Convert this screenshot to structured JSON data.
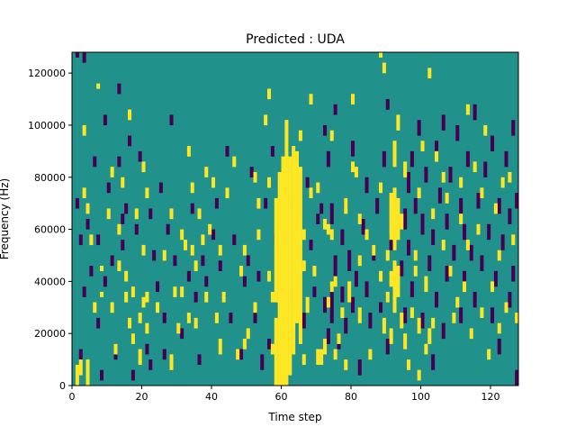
{
  "chart_data": {
    "type": "heatmap",
    "title": "Predicted : UDA",
    "xlabel": "Time step",
    "ylabel": "Frequency (Hz)",
    "xlim": [
      0,
      128
    ],
    "ylim": [
      0,
      128000
    ],
    "xticks": [
      0,
      20,
      40,
      60,
      80,
      100,
      120
    ],
    "yticks": [
      0,
      20000,
      40000,
      60000,
      80000,
      100000,
      120000
    ],
    "n_time_steps": 128,
    "n_freq_bins": 64,
    "freq_bin_hz": 2000,
    "levels": {
      "low": -1,
      "mid": 0,
      "high": 1
    },
    "colors": {
      "low": "#440154",
      "mid": "#21918c",
      "high": "#fde725"
    },
    "background_level": 0,
    "high_runs": [
      [
        1,
        0,
        3
      ],
      [
        2,
        2,
        4
      ],
      [
        3,
        48,
        49
      ],
      [
        3,
        36,
        37
      ],
      [
        4,
        0,
        4
      ],
      [
        4,
        33,
        34
      ],
      [
        5,
        27,
        28
      ],
      [
        6,
        14,
        15
      ],
      [
        7,
        57,
        57
      ],
      [
        8,
        22,
        22
      ],
      [
        8,
        17,
        17
      ],
      [
        10,
        32,
        33
      ],
      [
        11,
        14,
        15
      ],
      [
        11,
        40,
        41
      ],
      [
        12,
        6,
        7
      ],
      [
        13,
        22,
        23
      ],
      [
        13,
        29,
        30
      ],
      [
        14,
        38,
        39
      ],
      [
        15,
        20,
        21
      ],
      [
        15,
        16,
        17
      ],
      [
        16,
        11,
        12
      ],
      [
        16,
        51,
        52
      ],
      [
        17,
        8,
        9
      ],
      [
        17,
        17,
        18
      ],
      [
        18,
        32,
        33
      ],
      [
        19,
        12,
        13
      ],
      [
        19,
        4,
        6
      ],
      [
        20,
        41,
        42
      ],
      [
        20,
        15,
        16
      ],
      [
        20,
        25,
        26
      ],
      [
        21,
        16,
        17
      ],
      [
        21,
        10,
        11
      ],
      [
        21,
        36,
        37
      ],
      [
        24,
        14,
        15
      ],
      [
        26,
        24,
        25
      ],
      [
        28,
        3,
        5
      ],
      [
        28,
        32,
        33
      ],
      [
        29,
        17,
        18
      ],
      [
        30,
        10,
        11
      ],
      [
        31,
        28,
        29
      ],
      [
        31,
        17,
        18
      ],
      [
        32,
        26,
        27
      ],
      [
        33,
        12,
        13
      ],
      [
        33,
        44,
        45
      ],
      [
        34,
        25,
        26
      ],
      [
        34,
        37,
        38
      ],
      [
        35,
        22,
        23
      ],
      [
        35,
        11,
        12
      ],
      [
        36,
        32,
        33
      ],
      [
        37,
        27,
        28
      ],
      [
        38,
        16,
        17
      ],
      [
        38,
        40,
        41
      ],
      [
        39,
        29,
        30
      ],
      [
        40,
        38,
        39
      ],
      [
        41,
        12,
        13
      ],
      [
        42,
        6,
        8
      ],
      [
        42,
        25,
        26
      ],
      [
        43,
        16,
        17
      ],
      [
        44,
        36,
        37
      ],
      [
        46,
        42,
        43
      ],
      [
        47,
        5,
        6
      ],
      [
        48,
        21,
        22
      ],
      [
        49,
        7,
        8
      ],
      [
        49,
        25,
        26
      ],
      [
        50,
        9,
        10
      ],
      [
        52,
        14,
        15
      ],
      [
        52,
        39,
        40
      ],
      [
        53,
        28,
        29
      ],
      [
        53,
        34,
        35
      ],
      [
        55,
        50,
        51
      ],
      [
        56,
        20,
        21
      ],
      [
        56,
        55,
        56
      ],
      [
        56,
        38,
        39
      ],
      [
        57,
        6,
        7
      ],
      [
        57,
        16,
        17
      ],
      [
        58,
        0,
        12
      ],
      [
        58,
        16,
        35
      ],
      [
        59,
        0,
        40
      ],
      [
        60,
        0,
        43
      ],
      [
        61,
        0,
        50
      ],
      [
        62,
        2,
        43
      ],
      [
        63,
        6,
        45
      ],
      [
        64,
        12,
        44
      ],
      [
        65,
        8,
        41
      ],
      [
        65,
        47,
        48
      ],
      [
        66,
        28,
        29
      ],
      [
        66,
        22,
        23
      ],
      [
        66,
        4,
        5
      ],
      [
        67,
        14,
        16
      ],
      [
        68,
        36,
        37
      ],
      [
        68,
        54,
        55
      ],
      [
        69,
        21,
        22
      ],
      [
        70,
        4,
        6
      ],
      [
        70,
        37,
        38
      ],
      [
        71,
        4,
        6
      ],
      [
        72,
        6,
        8
      ],
      [
        72,
        30,
        31
      ],
      [
        73,
        15,
        16
      ],
      [
        73,
        29,
        30
      ],
      [
        74,
        28,
        29
      ],
      [
        74,
        18,
        19
      ],
      [
        74,
        47,
        48
      ],
      [
        75,
        5,
        6
      ],
      [
        75,
        19,
        20
      ],
      [
        76,
        8,
        9
      ],
      [
        77,
        13,
        14
      ],
      [
        78,
        3,
        4
      ],
      [
        78,
        33,
        35
      ],
      [
        79,
        18,
        19
      ],
      [
        79,
        16,
        17
      ],
      [
        80,
        41,
        42
      ],
      [
        80,
        54,
        55
      ],
      [
        81,
        40,
        41
      ],
      [
        82,
        31,
        32
      ],
      [
        82,
        12,
        14
      ],
      [
        82,
        23,
        24
      ],
      [
        84,
        28,
        29
      ],
      [
        85,
        5,
        6
      ],
      [
        86,
        25,
        26
      ],
      [
        88,
        20,
        21
      ],
      [
        88,
        37,
        38
      ],
      [
        88,
        63,
        63
      ],
      [
        89,
        10,
        12
      ],
      [
        89,
        60,
        61
      ],
      [
        90,
        24,
        25
      ],
      [
        90,
        16,
        17
      ],
      [
        91,
        19,
        21
      ],
      [
        91,
        28,
        36
      ],
      [
        91,
        8,
        10
      ],
      [
        92,
        14,
        23
      ],
      [
        92,
        26,
        37
      ],
      [
        92,
        42,
        46
      ],
      [
        93,
        17,
        22
      ],
      [
        93,
        28,
        35
      ],
      [
        93,
        49,
        51
      ],
      [
        94,
        11,
        13
      ],
      [
        94,
        30,
        32
      ],
      [
        95,
        7,
        9
      ],
      [
        95,
        40,
        42
      ],
      [
        96,
        3,
        4
      ],
      [
        97,
        13,
        14
      ],
      [
        98,
        21,
        22
      ],
      [
        98,
        24,
        25
      ],
      [
        99,
        10,
        12
      ],
      [
        99,
        36,
        37
      ],
      [
        99,
        1,
        2
      ],
      [
        100,
        45,
        46
      ],
      [
        101,
        18,
        20
      ],
      [
        101,
        6,
        7
      ],
      [
        102,
        8,
        10
      ],
      [
        102,
        59,
        60
      ],
      [
        103,
        32,
        33
      ],
      [
        103,
        11,
        12
      ],
      [
        104,
        43,
        44
      ],
      [
        106,
        26,
        27
      ],
      [
        106,
        39,
        40
      ],
      [
        107,
        35,
        36
      ],
      [
        108,
        21,
        22
      ],
      [
        109,
        12,
        13
      ],
      [
        110,
        15,
        16
      ],
      [
        111,
        31,
        32
      ],
      [
        111,
        38,
        39
      ],
      [
        112,
        18,
        19
      ],
      [
        113,
        26,
        27
      ],
      [
        113,
        52,
        53
      ],
      [
        114,
        9,
        10
      ],
      [
        115,
        41,
        42
      ],
      [
        116,
        29,
        30
      ],
      [
        117,
        36,
        37
      ],
      [
        117,
        13,
        14
      ],
      [
        118,
        48,
        49
      ],
      [
        119,
        5,
        6
      ],
      [
        120,
        18,
        19
      ],
      [
        121,
        33,
        34
      ],
      [
        122,
        24,
        25
      ],
      [
        122,
        10,
        11
      ],
      [
        123,
        38,
        39
      ],
      [
        124,
        14,
        15
      ],
      [
        125,
        39,
        40
      ],
      [
        126,
        27,
        28
      ],
      [
        127,
        12,
        13
      ]
    ],
    "low_runs": [
      [
        1,
        34,
        35
      ],
      [
        1,
        63,
        63
      ],
      [
        2,
        5,
        6
      ],
      [
        2,
        27,
        28
      ],
      [
        3,
        17,
        18
      ],
      [
        3,
        62,
        63
      ],
      [
        4,
        30,
        31
      ],
      [
        5,
        21,
        22
      ],
      [
        6,
        42,
        43
      ],
      [
        7,
        27,
        28
      ],
      [
        7,
        11,
        12
      ],
      [
        8,
        1,
        2
      ],
      [
        9,
        19,
        20
      ],
      [
        9,
        50,
        51
      ],
      [
        10,
        37,
        38
      ],
      [
        11,
        23,
        24
      ],
      [
        12,
        5,
        7
      ],
      [
        13,
        42,
        43
      ],
      [
        13,
        56,
        57
      ],
      [
        14,
        26,
        27
      ],
      [
        14,
        31,
        32
      ],
      [
        15,
        33,
        34
      ],
      [
        16,
        46,
        47
      ],
      [
        17,
        1,
        2
      ],
      [
        18,
        29,
        30
      ],
      [
        19,
        43,
        44
      ],
      [
        21,
        6,
        7
      ],
      [
        22,
        3,
        4
      ],
      [
        22,
        32,
        33
      ],
      [
        23,
        24,
        25
      ],
      [
        24,
        18,
        19
      ],
      [
        25,
        37,
        38
      ],
      [
        26,
        5,
        6
      ],
      [
        26,
        12,
        13
      ],
      [
        27,
        29,
        30
      ],
      [
        28,
        50,
        51
      ],
      [
        29,
        23,
        24
      ],
      [
        31,
        9,
        10
      ],
      [
        33,
        20,
        21
      ],
      [
        34,
        33,
        34
      ],
      [
        35,
        16,
        17
      ],
      [
        36,
        4,
        5
      ],
      [
        37,
        23,
        24
      ],
      [
        38,
        19,
        20
      ],
      [
        40,
        28,
        29
      ],
      [
        41,
        34,
        35
      ],
      [
        42,
        22,
        23
      ],
      [
        44,
        44,
        45
      ],
      [
        45,
        12,
        13
      ],
      [
        46,
        27,
        28
      ],
      [
        48,
        5,
        6
      ],
      [
        49,
        19,
        20
      ],
      [
        50,
        23,
        24
      ],
      [
        51,
        40,
        41
      ],
      [
        52,
        12,
        13
      ],
      [
        53,
        20,
        21
      ],
      [
        54,
        3,
        5
      ],
      [
        55,
        34,
        35
      ],
      [
        56,
        7,
        8
      ],
      [
        57,
        44,
        45
      ],
      [
        58,
        27,
        28
      ],
      [
        63,
        15,
        18
      ],
      [
        63,
        34,
        35
      ],
      [
        64,
        29,
        30
      ],
      [
        65,
        22,
        23
      ],
      [
        66,
        11,
        13
      ],
      [
        67,
        38,
        39
      ],
      [
        68,
        26,
        27
      ],
      [
        69,
        17,
        18
      ],
      [
        70,
        31,
        32
      ],
      [
        71,
        33,
        34
      ],
      [
        72,
        14,
        16
      ],
      [
        72,
        48,
        49
      ],
      [
        73,
        8,
        10
      ],
      [
        73,
        42,
        44
      ],
      [
        74,
        12,
        18
      ],
      [
        74,
        31,
        34
      ],
      [
        75,
        20,
        24
      ],
      [
        75,
        52,
        53
      ],
      [
        76,
        7,
        9
      ],
      [
        77,
        16,
        18
      ],
      [
        77,
        27,
        29
      ],
      [
        78,
        10,
        12
      ],
      [
        78,
        34,
        35
      ],
      [
        79,
        22,
        25
      ],
      [
        80,
        14,
        16
      ],
      [
        80,
        44,
        46
      ],
      [
        81,
        19,
        21
      ],
      [
        82,
        2,
        4
      ],
      [
        83,
        29,
        31
      ],
      [
        84,
        17,
        19
      ],
      [
        84,
        37,
        39
      ],
      [
        85,
        11,
        13
      ],
      [
        86,
        24,
        26
      ],
      [
        87,
        33,
        35
      ],
      [
        88,
        14,
        15
      ],
      [
        89,
        42,
        44
      ],
      [
        90,
        6,
        8
      ],
      [
        90,
        53,
        54
      ],
      [
        91,
        26,
        28
      ],
      [
        94,
        21,
        23
      ],
      [
        95,
        12,
        14
      ],
      [
        95,
        30,
        33
      ],
      [
        96,
        25,
        27
      ],
      [
        96,
        37,
        40
      ],
      [
        97,
        17,
        19
      ],
      [
        97,
        42,
        44
      ],
      [
        98,
        33,
        35
      ],
      [
        99,
        48,
        50
      ],
      [
        100,
        11,
        13
      ],
      [
        100,
        29,
        32
      ],
      [
        101,
        39,
        41
      ],
      [
        102,
        22,
        24
      ],
      [
        103,
        3,
        5
      ],
      [
        103,
        27,
        29
      ],
      [
        104,
        44,
        46
      ],
      [
        104,
        15,
        17
      ],
      [
        105,
        35,
        37
      ],
      [
        106,
        9,
        11
      ],
      [
        106,
        49,
        51
      ],
      [
        107,
        20,
        22
      ],
      [
        107,
        30,
        32
      ],
      [
        108,
        39,
        41
      ],
      [
        109,
        24,
        26
      ],
      [
        110,
        47,
        49
      ],
      [
        111,
        12,
        14
      ],
      [
        111,
        33,
        35
      ],
      [
        112,
        19,
        21
      ],
      [
        112,
        28,
        30
      ],
      [
        113,
        42,
        44
      ],
      [
        114,
        24,
        26
      ],
      [
        115,
        15,
        17
      ],
      [
        115,
        51,
        53
      ],
      [
        116,
        34,
        36
      ],
      [
        117,
        22,
        24
      ],
      [
        118,
        40,
        42
      ],
      [
        119,
        28,
        30
      ],
      [
        120,
        12,
        14
      ],
      [
        120,
        45,
        47
      ],
      [
        121,
        19,
        21
      ],
      [
        122,
        33,
        35
      ],
      [
        122,
        6,
        8
      ],
      [
        123,
        26,
        28
      ],
      [
        124,
        42,
        44
      ],
      [
        125,
        15,
        17
      ],
      [
        125,
        31,
        33
      ],
      [
        126,
        20,
        22
      ],
      [
        126,
        48,
        50
      ],
      [
        127,
        34,
        36
      ],
      [
        127,
        0,
        2
      ]
    ]
  }
}
